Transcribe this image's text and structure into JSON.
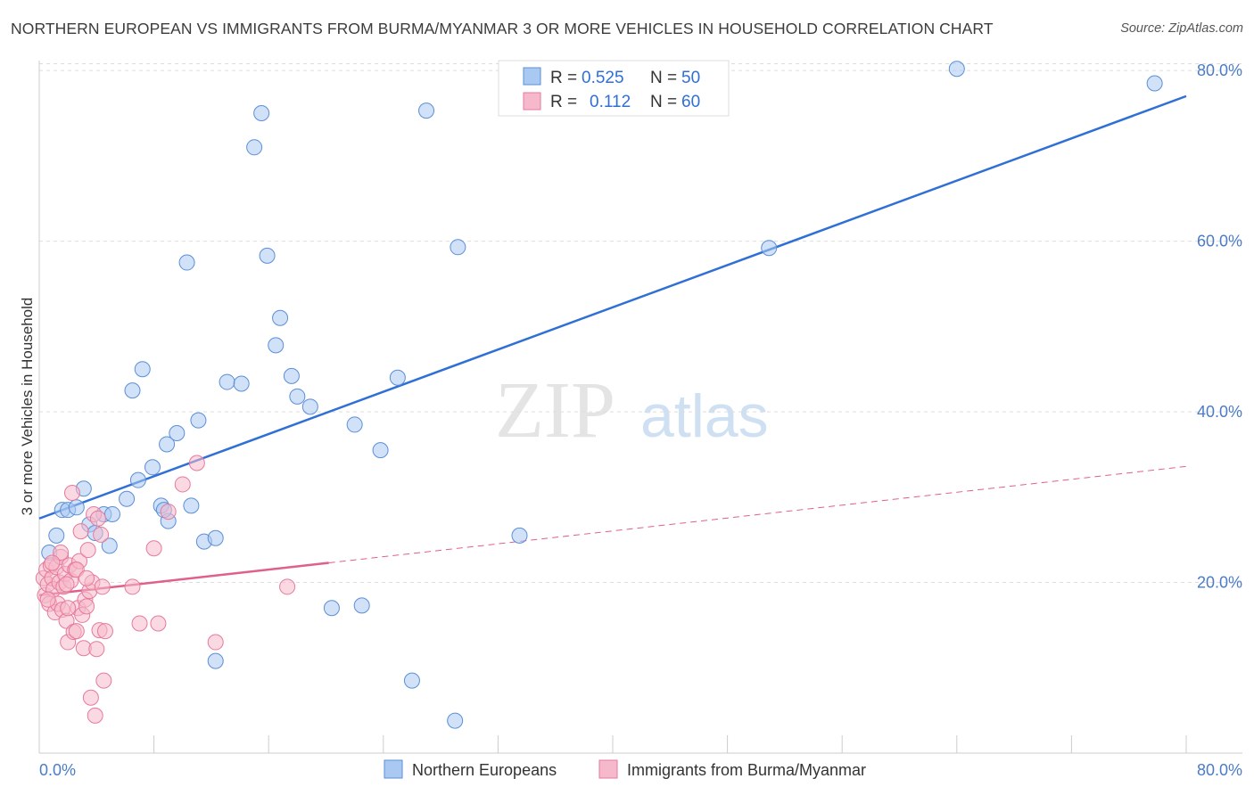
{
  "title": "NORTHERN EUROPEAN VS IMMIGRANTS FROM BURMA/MYANMAR 3 OR MORE VEHICLES IN HOUSEHOLD CORRELATION CHART",
  "source": "Source: ZipAtlas.com",
  "watermark": {
    "zip": "ZIP",
    "atlas": "atlas"
  },
  "colors": {
    "blue_fill": "#a9c8f2",
    "blue_stroke": "#5b8fd6",
    "blue_line": "#2f6fd6",
    "pink_fill": "#f6b9cb",
    "pink_stroke": "#e77a9c",
    "pink_line": "#e0608a",
    "grid": "#dddddd",
    "tick_text": "#4a7cc7"
  },
  "legend": {
    "r_label": "R =",
    "n_label": "N =",
    "series": [
      {
        "r": "0.525",
        "n": "50"
      },
      {
        "r": "0.112",
        "n": "60"
      }
    ]
  },
  "chart_data": {
    "type": "scatter",
    "title": "NORTHERN EUROPEAN VS IMMIGRANTS FROM BURMA/MYANMAR 3 OR MORE VEHICLES IN HOUSEHOLD CORRELATION CHART",
    "xlabel": "",
    "ylabel": "3 or more Vehicles in Household",
    "xlim": [
      0,
      80
    ],
    "ylim": [
      0,
      82
    ],
    "x_tick_labels": [
      "0.0%",
      "80.0%"
    ],
    "y_ticks": [
      20,
      40,
      60,
      80
    ],
    "y_tick_labels": [
      "20.0%",
      "40.0%",
      "60.0%",
      "80.0%"
    ],
    "grid": true,
    "legend_position": "top-center",
    "series": [
      {
        "name": "Northern Europeans",
        "color": "blue",
        "points": [
          [
            0.7,
            23.5
          ],
          [
            1.2,
            25.5
          ],
          [
            1.6,
            28.5
          ],
          [
            2.0,
            28.5
          ],
          [
            2.6,
            28.8
          ],
          [
            3.1,
            31.0
          ],
          [
            3.5,
            26.8
          ],
          [
            3.9,
            25.8
          ],
          [
            4.5,
            28.0
          ],
          [
            5.1,
            28.0
          ],
          [
            4.9,
            24.3
          ],
          [
            6.1,
            29.8
          ],
          [
            6.5,
            42.5
          ],
          [
            6.9,
            32.0
          ],
          [
            7.2,
            45.0
          ],
          [
            7.9,
            33.5
          ],
          [
            8.5,
            29.0
          ],
          [
            8.9,
            36.2
          ],
          [
            9.0,
            27.2
          ],
          [
            9.6,
            37.5
          ],
          [
            10.3,
            57.5
          ],
          [
            10.6,
            29.0
          ],
          [
            11.1,
            39.0
          ],
          [
            11.5,
            24.8
          ],
          [
            12.3,
            25.2
          ],
          [
            13.1,
            43.5
          ],
          [
            14.1,
            43.3
          ],
          [
            15.0,
            71.0
          ],
          [
            15.5,
            75.0
          ],
          [
            15.9,
            58.3
          ],
          [
            16.5,
            47.8
          ],
          [
            16.8,
            51.0
          ],
          [
            17.6,
            44.2
          ],
          [
            18.0,
            41.8
          ],
          [
            18.9,
            40.6
          ],
          [
            20.4,
            17.0
          ],
          [
            22.0,
            38.5
          ],
          [
            22.5,
            17.3
          ],
          [
            23.8,
            35.5
          ],
          [
            25.0,
            44.0
          ],
          [
            26.0,
            8.5
          ],
          [
            27.0,
            75.3
          ],
          [
            29.0,
            3.8
          ],
          [
            29.2,
            59.3
          ],
          [
            33.5,
            25.5
          ],
          [
            50.9,
            59.2
          ],
          [
            64.0,
            80.2
          ],
          [
            77.8,
            78.5
          ],
          [
            12.3,
            10.8
          ],
          [
            8.7,
            28.5
          ]
        ]
      },
      {
        "name": "Immigrants from Burma/Myanmar",
        "color": "pink",
        "points": [
          [
            0.3,
            20.5
          ],
          [
            0.4,
            18.5
          ],
          [
            0.5,
            21.5
          ],
          [
            0.6,
            19.8
          ],
          [
            0.7,
            17.5
          ],
          [
            0.8,
            22.0
          ],
          [
            0.9,
            20.5
          ],
          [
            1.0,
            19.2
          ],
          [
            1.1,
            16.5
          ],
          [
            1.2,
            21.8
          ],
          [
            1.3,
            17.5
          ],
          [
            1.4,
            20.0
          ],
          [
            1.5,
            23.0
          ],
          [
            1.6,
            16.8
          ],
          [
            1.7,
            19.5
          ],
          [
            1.8,
            21.0
          ],
          [
            1.9,
            15.5
          ],
          [
            2.0,
            13.0
          ],
          [
            2.1,
            22.0
          ],
          [
            2.2,
            20.2
          ],
          [
            2.3,
            30.5
          ],
          [
            2.4,
            14.2
          ],
          [
            2.5,
            21.5
          ],
          [
            2.6,
            14.3
          ],
          [
            2.7,
            17.0
          ],
          [
            2.8,
            22.5
          ],
          [
            2.9,
            26.0
          ],
          [
            3.0,
            16.2
          ],
          [
            3.1,
            12.3
          ],
          [
            3.2,
            18.0
          ],
          [
            3.3,
            17.2
          ],
          [
            3.4,
            23.8
          ],
          [
            3.5,
            19.0
          ],
          [
            3.6,
            6.5
          ],
          [
            3.7,
            20.0
          ],
          [
            3.8,
            28.0
          ],
          [
            3.9,
            4.4
          ],
          [
            4.0,
            12.2
          ],
          [
            4.1,
            27.5
          ],
          [
            4.2,
            14.4
          ],
          [
            4.3,
            25.6
          ],
          [
            4.4,
            19.5
          ],
          [
            4.5,
            8.5
          ],
          [
            4.6,
            14.3
          ],
          [
            6.5,
            19.5
          ],
          [
            7.0,
            15.2
          ],
          [
            8.0,
            24.0
          ],
          [
            8.3,
            15.2
          ],
          [
            9.0,
            28.3
          ],
          [
            10.0,
            31.5
          ],
          [
            11.0,
            34.0
          ],
          [
            12.3,
            13.0
          ],
          [
            17.3,
            19.5
          ],
          [
            2.0,
            17.0
          ],
          [
            1.5,
            23.5
          ],
          [
            0.6,
            18.0
          ],
          [
            2.6,
            21.5
          ],
          [
            3.3,
            20.5
          ],
          [
            0.9,
            22.3
          ],
          [
            1.9,
            19.8
          ]
        ]
      }
    ],
    "trendlines": [
      {
        "series": "Northern Europeans",
        "x": [
          0,
          80
        ],
        "y": [
          27.5,
          77.0
        ],
        "style": "solid"
      },
      {
        "series": "Immigrants from Burma/Myanmar",
        "x": [
          0,
          20.2
        ],
        "y": [
          18.5,
          22.3
        ],
        "style": "solid"
      },
      {
        "series": "Immigrants from Burma/Myanmar",
        "x": [
          20.2,
          80
        ],
        "y": [
          22.3,
          33.6
        ],
        "style": "dashed"
      }
    ]
  }
}
